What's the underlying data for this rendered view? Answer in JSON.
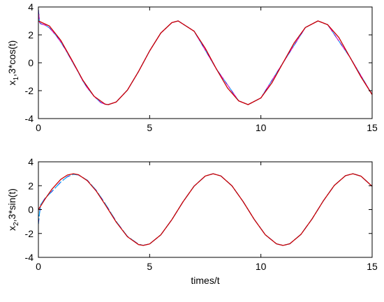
{
  "chart_data": [
    {
      "type": "line",
      "xlabel": "",
      "ylabel": "x_1,3*cos(t)",
      "ylabel_main": "x",
      "ylabel_sub": "1",
      "ylabel_rest": ",3*cos(t)",
      "xlim": [
        0,
        15
      ],
      "ylim": [
        -4,
        4
      ],
      "xticks": [
        0,
        5,
        10,
        15
      ],
      "yticks": [
        4,
        2,
        0,
        -2,
        -4
      ],
      "xtick_labels": [
        "0",
        "5",
        "10",
        "15"
      ],
      "ytick_labels": [
        "4",
        "2",
        "0",
        "-2",
        "-4"
      ],
      "grid": false,
      "series": [
        {
          "style": "dash-dot",
          "colors": [
            "#2a2ad8",
            "#00aaff",
            "#cc22cc"
          ],
          "x": [
            0,
            0.05,
            0.1,
            0.2,
            0.3,
            0.5,
            0.8,
            1.0,
            1.2,
            1.5,
            1.8,
            2.0,
            2.2,
            2.5,
            2.8,
            3.0,
            3.1416,
            3.5,
            4.0,
            4.5,
            5.0,
            5.5,
            6.0,
            6.2832,
            7.0,
            8.0,
            9.0,
            9.4248,
            10.0,
            11.0,
            12.0,
            12.566,
            13.0,
            14.0,
            15.0
          ],
          "y": [
            3.8,
            2.9,
            2.8,
            2.75,
            2.7,
            2.5,
            1.95,
            1.5,
            1.0,
            0.15,
            -0.7,
            -1.3,
            -1.8,
            -2.4,
            -2.85,
            -2.97,
            -3.0,
            -2.81,
            -1.96,
            -0.63,
            0.85,
            2.13,
            2.88,
            3.0,
            2.26,
            -0.44,
            -2.73,
            -3.0,
            -2.52,
            0.01,
            2.53,
            3.0,
            2.73,
            0.41,
            -2.28
          ]
        },
        {
          "style": "solid",
          "colors": [
            "#cc0000"
          ],
          "x": [
            0,
            0.5,
            1.0,
            1.5,
            2.0,
            2.5,
            3.0,
            3.1416,
            3.5,
            4.0,
            4.5,
            5.0,
            5.5,
            6.0,
            6.2832,
            7.0,
            7.5,
            8.0,
            8.5,
            9.0,
            9.4248,
            10.0,
            10.5,
            11.0,
            11.5,
            12.0,
            12.566,
            13.0,
            13.5,
            14.0,
            14.5,
            15.0
          ],
          "y": [
            3.0,
            2.63,
            1.62,
            0.21,
            -1.25,
            -2.4,
            -2.97,
            -3.0,
            -2.81,
            -1.96,
            -0.63,
            0.85,
            2.13,
            2.88,
            3.0,
            2.26,
            1.04,
            -0.44,
            -1.81,
            -2.73,
            -3.0,
            -2.52,
            -1.43,
            0.01,
            1.44,
            2.53,
            3.0,
            2.73,
            1.82,
            0.41,
            -1.02,
            -2.28
          ]
        }
      ]
    },
    {
      "type": "line",
      "xlabel": "times/t",
      "ylabel": "x_2,3*sin(t)",
      "ylabel_main": "x",
      "ylabel_sub": "2",
      "ylabel_rest": ",3*sin(t)",
      "xlim": [
        0,
        15
      ],
      "ylim": [
        -4,
        4
      ],
      "xticks": [
        0,
        5,
        10,
        15
      ],
      "yticks": [
        4,
        2,
        0,
        -2,
        -4
      ],
      "xtick_labels": [
        "0",
        "5",
        "10",
        "15"
      ],
      "ytick_labels": [
        "4",
        "2",
        "0",
        "-2",
        "-4"
      ],
      "grid": false,
      "series": [
        {
          "style": "dash-dot",
          "colors": [
            "#2a2ad8",
            "#00aaff"
          ],
          "x": [
            0,
            0.03,
            0.1,
            0.3,
            0.6,
            1.0,
            1.3,
            1.5708,
            1.8,
            2.2,
            2.6,
            3.0,
            3.5,
            4.0,
            4.5,
            4.7124,
            5.0,
            5.5,
            6.0,
            6.5,
            7.0,
            7.5,
            7.854,
            8.2,
            8.7,
            9.2,
            9.7,
            10.2,
            10.7,
            10.996,
            11.3,
            11.8,
            12.3,
            12.8,
            13.3,
            13.8,
            14.137,
            14.5,
            15.0
          ],
          "y": [
            -1.2,
            -0.6,
            0.4,
            0.95,
            1.5,
            2.3,
            2.75,
            2.95,
            2.9,
            2.45,
            1.6,
            0.5,
            -1.0,
            -2.25,
            -2.9,
            -2.99,
            -2.88,
            -2.12,
            -0.84,
            0.65,
            1.97,
            2.81,
            3.0,
            2.82,
            1.99,
            0.67,
            -0.82,
            -2.11,
            -2.87,
            -3.0,
            -2.86,
            -2.08,
            -0.78,
            0.71,
            2.02,
            2.84,
            3.0,
            2.8,
            1.95
          ]
        },
        {
          "style": "solid",
          "colors": [
            "#cc0000"
          ],
          "x": [
            0,
            0.3,
            0.6,
            1.0,
            1.3,
            1.5708,
            1.8,
            2.2,
            2.6,
            3.0,
            3.5,
            4.0,
            4.5,
            4.7124,
            5.0,
            5.5,
            6.0,
            6.5,
            7.0,
            7.5,
            7.854,
            8.2,
            8.7,
            9.2,
            9.7,
            10.2,
            10.7,
            10.996,
            11.3,
            11.8,
            12.3,
            12.8,
            13.3,
            13.8,
            14.137,
            14.5,
            15.0
          ],
          "y": [
            0.0,
            0.89,
            1.69,
            2.52,
            2.89,
            3.0,
            2.92,
            2.42,
            1.55,
            0.42,
            -1.05,
            -2.27,
            -2.93,
            -3.0,
            -2.88,
            -2.12,
            -0.84,
            0.65,
            1.97,
            2.81,
            3.0,
            2.82,
            1.99,
            0.67,
            -0.82,
            -2.11,
            -2.87,
            -3.0,
            -2.86,
            -2.08,
            -0.78,
            0.71,
            2.02,
            2.84,
            3.0,
            2.8,
            1.95
          ]
        }
      ]
    }
  ]
}
